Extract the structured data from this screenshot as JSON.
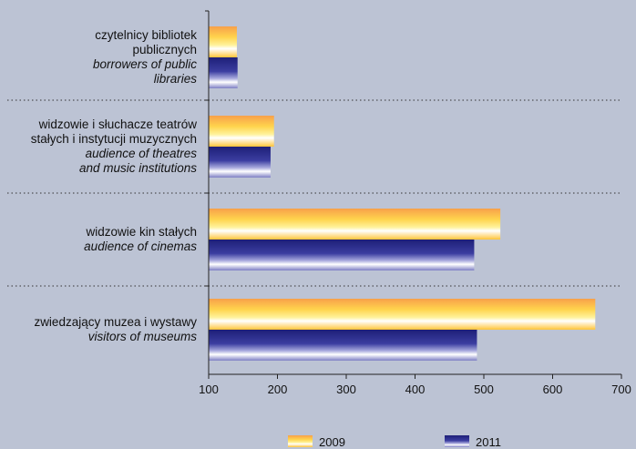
{
  "chart_data": {
    "type": "bar",
    "orientation": "horizontal",
    "categories": [
      {
        "pl": [
          "czytelnicy bibliotek",
          "publicznych"
        ],
        "en": [
          "borrowers of public",
          "libraries"
        ]
      },
      {
        "pl": [
          "widzowie i słuchacze teatrów",
          "stałych i instytucji muzycznych"
        ],
        "en": [
          "audience of theatres",
          "and music institutions"
        ]
      },
      {
        "pl": [
          "widzowie kin stałych"
        ],
        "en": [
          "audience of cinemas"
        ]
      },
      {
        "pl": [
          "zwiedzający muzea i wystawy"
        ],
        "en": [
          "visitors of museums"
        ]
      }
    ],
    "series": [
      {
        "name": "2009",
        "values": [
          141,
          195,
          524,
          662
        ]
      },
      {
        "name": "2011",
        "values": [
          142,
          190,
          486,
          490
        ]
      }
    ],
    "xlim": [
      100,
      700
    ],
    "xticks": [
      "100",
      "200",
      "300",
      "400",
      "500",
      "600",
      "700"
    ],
    "grid": false,
    "separators": "dotted",
    "legend_position": "bottom"
  },
  "colors": {
    "background": "#bcc3d4",
    "series_2009": "#ffd633",
    "series_2011": "#2a2c8c"
  }
}
